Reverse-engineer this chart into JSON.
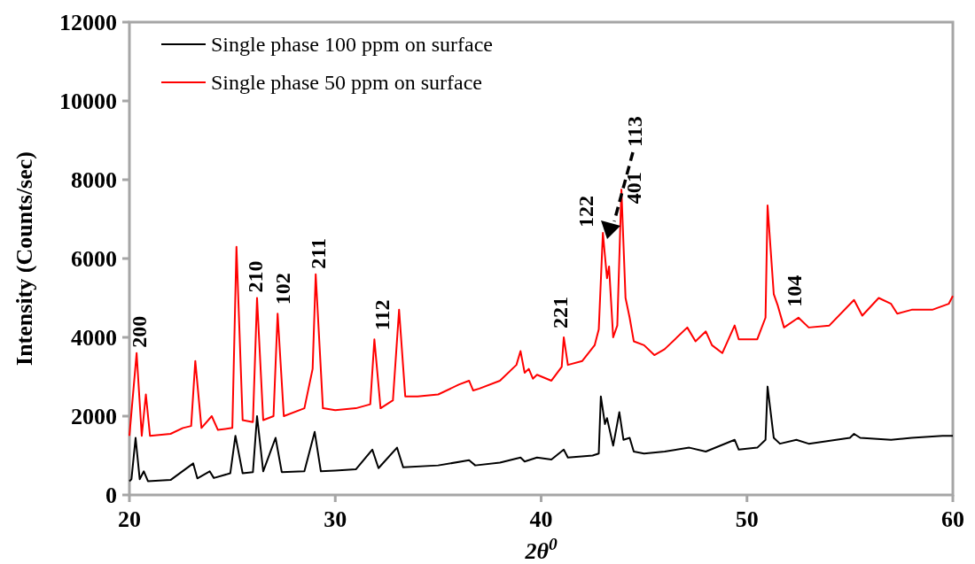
{
  "chart_data": {
    "type": "line",
    "xlabel": "2θ$^{0}$",
    "ylabel": "Intensity (Counts/sec)",
    "xlim": [
      20,
      60
    ],
    "xticks": [
      20,
      30,
      40,
      50,
      60
    ],
    "ylim": [
      0,
      12000
    ],
    "yticks": [
      0,
      2000,
      4000,
      6000,
      8000,
      10000,
      12000
    ],
    "grid": false,
    "legend": "top left",
    "marker": "none",
    "line_style": "solid",
    "series": [
      {
        "name": "Single phase 100 ppm on surface",
        "color": "#000000",
        "x": [
          20,
          20.1,
          20.3,
          20.5,
          20.7,
          20.9,
          22,
          23.1,
          23.3,
          23.9,
          24.1,
          24.9,
          25.15,
          25.5,
          26.0,
          26.2,
          26.5,
          27.1,
          27.4,
          28.5,
          29.0,
          29.3,
          30,
          31,
          31.8,
          32.1,
          33.0,
          33.3,
          35,
          36.5,
          36.8,
          38,
          39,
          39.2,
          39.5,
          39.8,
          40.5,
          41.1,
          41.3,
          42.5,
          42.8,
          42.9,
          43.1,
          43.2,
          43.5,
          43.8,
          44.0,
          44.3,
          44.5,
          45,
          46,
          47.2,
          48,
          49.4,
          49.6,
          50.5,
          50.9,
          51.0,
          51.3,
          51.6,
          52.4,
          53,
          55,
          55.2,
          55.5,
          57,
          58,
          59.5,
          60
        ],
        "values": [
          350,
          400,
          1450,
          400,
          600,
          350,
          380,
          800,
          420,
          600,
          430,
          550,
          1500,
          550,
          580,
          2000,
          600,
          1450,
          580,
          600,
          1600,
          600,
          620,
          650,
          1150,
          680,
          1200,
          700,
          750,
          880,
          750,
          820,
          950,
          850,
          900,
          950,
          900,
          1150,
          950,
          1000,
          1050,
          2500,
          1800,
          1950,
          1250,
          2100,
          1400,
          1450,
          1100,
          1050,
          1100,
          1200,
          1100,
          1400,
          1150,
          1200,
          1400,
          2750,
          1450,
          1300,
          1400,
          1300,
          1450,
          1550,
          1450,
          1400,
          1450,
          1500,
          1500
        ]
      },
      {
        "name": "Single phase 50 ppm on surface",
        "color": "#ff0000",
        "x": [
          20,
          20.35,
          20.6,
          20.8,
          21.0,
          22,
          22.6,
          23.0,
          23.2,
          23.5,
          24.0,
          24.3,
          25.0,
          25.2,
          25.5,
          26.0,
          26.2,
          26.5,
          27.0,
          27.2,
          27.5,
          28.5,
          28.9,
          29.05,
          29.4,
          30,
          31,
          31.7,
          31.9,
          32.2,
          32.8,
          33.1,
          33.4,
          34,
          35,
          36,
          36.5,
          36.7,
          37,
          38,
          38.8,
          39,
          39.2,
          39.4,
          39.6,
          39.8,
          40.5,
          41.0,
          41.1,
          41.3,
          42,
          42.6,
          42.8,
          43.0,
          43.2,
          43.3,
          43.5,
          43.7,
          43.9,
          44.1,
          44.3,
          44.5,
          45,
          45.5,
          46,
          47.1,
          47.5,
          48,
          48.3,
          48.8,
          49.4,
          49.6,
          50.5,
          50.9,
          51.0,
          51.3,
          51.5,
          51.8,
          52.5,
          53,
          54,
          55.2,
          55.6,
          56.4,
          57,
          57.3,
          58,
          59,
          59.8,
          60
        ],
        "values": [
          1500,
          3600,
          1500,
          2550,
          1500,
          1550,
          1700,
          1750,
          3400,
          1700,
          2000,
          1650,
          1700,
          6300,
          1900,
          1850,
          5000,
          1900,
          2000,
          4600,
          2000,
          2200,
          3200,
          5600,
          2200,
          2150,
          2200,
          2300,
          3950,
          2200,
          2400,
          4700,
          2500,
          2500,
          2550,
          2800,
          2900,
          2650,
          2700,
          2900,
          3300,
          3650,
          3100,
          3200,
          2950,
          3050,
          2900,
          3250,
          4000,
          3300,
          3400,
          3800,
          4200,
          6650,
          5500,
          5800,
          4000,
          4300,
          7750,
          5000,
          4500,
          3900,
          3800,
          3550,
          3700,
          4250,
          3900,
          4150,
          3800,
          3600,
          4300,
          3950,
          3950,
          4500,
          7350,
          5100,
          4800,
          4250,
          4500,
          4250,
          4300,
          4950,
          4550,
          5000,
          4850,
          4600,
          4700,
          4700,
          4850,
          5050
        ]
      }
    ],
    "annotations": [
      {
        "text": "200",
        "x": 20.35,
        "y": 3600
      },
      {
        "text": "210",
        "x": 26.2,
        "y": 5000
      },
      {
        "text": "102",
        "x": 27.2,
        "y": 4600
      },
      {
        "text": "211",
        "x": 29.05,
        "y": 5600
      },
      {
        "text": "112",
        "x": 31.9,
        "y": 3950
      },
      {
        "text": "221",
        "x": 41.1,
        "y": 4000
      },
      {
        "text": "122",
        "x": 43.0,
        "y": 6650
      },
      "113",
      {
        "text": "401",
        "x": 43.9,
        "y": 7750
      },
      {
        "text": "104",
        "x": 52.5,
        "y": 4500
      }
    ]
  }
}
